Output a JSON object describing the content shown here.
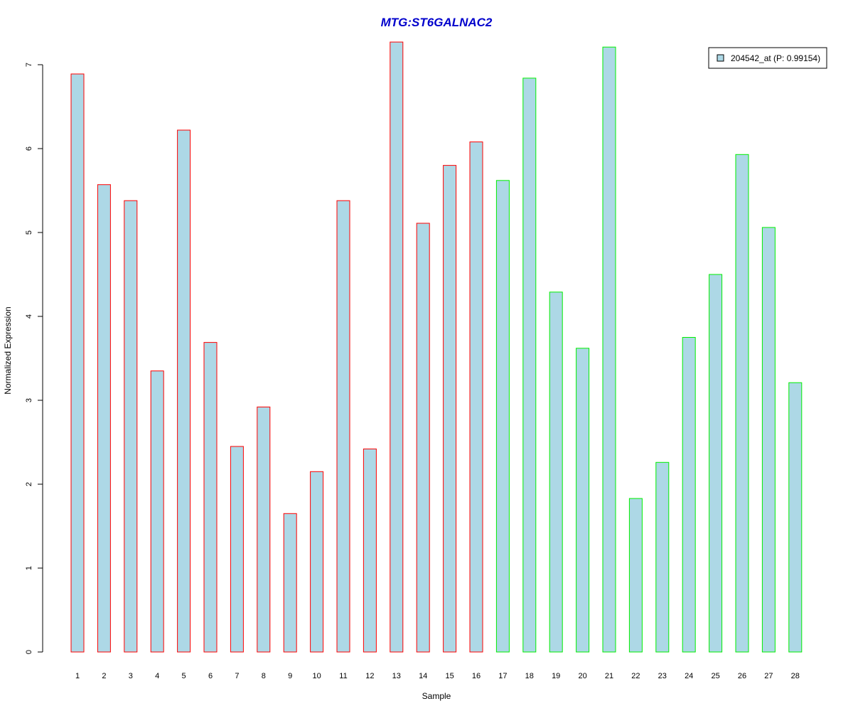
{
  "chart_data": {
    "type": "bar",
    "title": "MTG:ST6GALNAC2",
    "title_color": "#0000CC",
    "xlabel": "Sample",
    "ylabel": "Normalized Expression",
    "ylim": [
      0,
      7.3
    ],
    "yticks": [
      0,
      1,
      2,
      3,
      4,
      5,
      6,
      7
    ],
    "grid": false,
    "legend_position": "top-right",
    "bar_fill": "#ADD8E6",
    "categories": [
      "1",
      "2",
      "3",
      "4",
      "5",
      "6",
      "7",
      "8",
      "9",
      "10",
      "11",
      "12",
      "13",
      "14",
      "15",
      "16",
      "17",
      "18",
      "19",
      "20",
      "21",
      "22",
      "23",
      "24",
      "25",
      "26",
      "27",
      "28"
    ],
    "series": [
      {
        "name": "204542_at (P: 0.99154)",
        "values": [
          6.89,
          5.57,
          5.38,
          3.35,
          6.22,
          3.69,
          2.45,
          2.92,
          1.65,
          2.15,
          5.38,
          2.42,
          7.27,
          5.11,
          5.8,
          6.08,
          5.62,
          6.84,
          4.29,
          3.62,
          7.21,
          1.83,
          2.26,
          3.75,
          4.5,
          5.93,
          5.06,
          3.21
        ]
      }
    ],
    "bar_border_colors": [
      "#FF0000",
      "#FF0000",
      "#FF0000",
      "#FF0000",
      "#FF0000",
      "#FF0000",
      "#FF0000",
      "#FF0000",
      "#FF0000",
      "#FF0000",
      "#FF0000",
      "#FF0000",
      "#FF0000",
      "#FF0000",
      "#FF0000",
      "#FF0000",
      "#00EE00",
      "#00EE00",
      "#00EE00",
      "#00EE00",
      "#00EE00",
      "#00EE00",
      "#00EE00",
      "#00EE00",
      "#00EE00",
      "#00EE00",
      "#00EE00",
      "#00EE00"
    ]
  }
}
